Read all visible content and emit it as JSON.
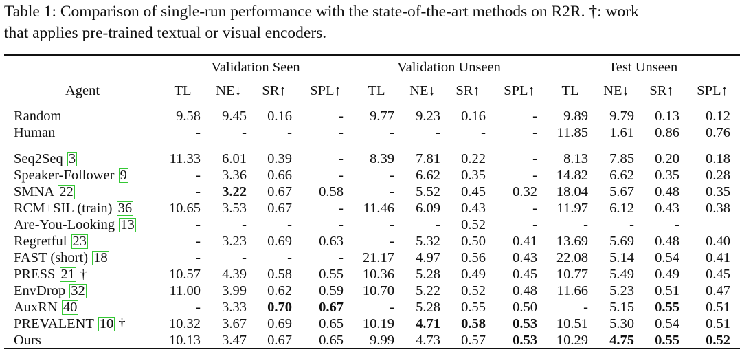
{
  "caption": {
    "line1": "Table 1: Comparison of single-run performance with the state-of-the-art methods on R2R. †: work",
    "line2": "that applies pre-trained textual or visual encoders."
  },
  "header": {
    "agent": "Agent",
    "groups": [
      "Validation Seen",
      "Validation Unseen",
      "Test Unseen"
    ],
    "metrics": [
      "TL",
      "NE↓",
      "SR↑",
      "SPL↑"
    ]
  },
  "rows": [
    {
      "name": "Random",
      "ref": "",
      "dagger": "",
      "values": [
        "9.58",
        "9.45",
        "0.16",
        "-",
        "9.77",
        "9.23",
        "0.16",
        "-",
        "9.89",
        "9.79",
        "0.13",
        "0.12"
      ],
      "bold": []
    },
    {
      "name": "Human",
      "ref": "",
      "dagger": "",
      "values": [
        "-",
        "-",
        "-",
        "-",
        "-",
        "-",
        "-",
        "-",
        "11.85",
        "1.61",
        "0.86",
        "0.76"
      ],
      "bold": []
    },
    {
      "name": "Seq2Seq",
      "ref": "3",
      "dagger": "",
      "values": [
        "11.33",
        "6.01",
        "0.39",
        "-",
        "8.39",
        "7.81",
        "0.22",
        "-",
        "8.13",
        "7.85",
        "0.20",
        "0.18"
      ],
      "bold": []
    },
    {
      "name": "Speaker-Follower",
      "ref": "9",
      "dagger": "",
      "values": [
        "-",
        "3.36",
        "0.66",
        "-",
        "-",
        "6.62",
        "0.35",
        "-",
        "14.82",
        "6.62",
        "0.35",
        "0.28"
      ],
      "bold": []
    },
    {
      "name": "SMNA",
      "ref": "22",
      "dagger": "",
      "values": [
        "-",
        "3.22",
        "0.67",
        "0.58",
        "-",
        "5.52",
        "0.45",
        "0.32",
        "18.04",
        "5.67",
        "0.48",
        "0.35"
      ],
      "bold": [
        1
      ]
    },
    {
      "name": "RCM+SIL (train)",
      "ref": "36",
      "dagger": "",
      "values": [
        "10.65",
        "3.53",
        "0.67",
        "-",
        "11.46",
        "6.09",
        "0.43",
        "-",
        "11.97",
        "6.12",
        "0.43",
        "0.38"
      ],
      "bold": []
    },
    {
      "name": "Are-You-Looking",
      "ref": "13",
      "dagger": "",
      "values": [
        "-",
        "-",
        "-",
        "-",
        "-",
        "-",
        "0.52",
        "-",
        "-",
        "-",
        "-",
        ""
      ],
      "bold": []
    },
    {
      "name": "Regretful",
      "ref": "23",
      "dagger": "",
      "values": [
        "-",
        "3.23",
        "0.69",
        "0.63",
        "-",
        "5.32",
        "0.50",
        "0.41",
        "13.69",
        "5.69",
        "0.48",
        "0.40"
      ],
      "bold": []
    },
    {
      "name": "FAST (short)",
      "ref": "18",
      "dagger": "",
      "values": [
        "-",
        "-",
        "-",
        "-",
        "21.17",
        "4.97",
        "0.56",
        "0.43",
        "22.08",
        "5.14",
        "0.54",
        "0.41"
      ],
      "bold": []
    },
    {
      "name": "PRESS",
      "ref": "21",
      "dagger": "†",
      "values": [
        "10.57",
        "4.39",
        "0.58",
        "0.55",
        "10.36",
        "5.28",
        "0.49",
        "0.45",
        "10.77",
        "5.49",
        "0.49",
        "0.45"
      ],
      "bold": []
    },
    {
      "name": "EnvDrop",
      "ref": "32",
      "dagger": "",
      "values": [
        "11.00",
        "3.99",
        "0.62",
        "0.59",
        "10.70",
        "5.22",
        "0.52",
        "0.48",
        "11.66",
        "5.23",
        "0.51",
        "0.47"
      ],
      "bold": []
    },
    {
      "name": "AuxRN",
      "ref": "40",
      "dagger": "",
      "values": [
        "-",
        "3.33",
        "0.70",
        "0.67",
        "-",
        "5.28",
        "0.55",
        "0.50",
        "-",
        "5.15",
        "0.55",
        "0.51"
      ],
      "bold": [
        2,
        3,
        10
      ]
    },
    {
      "name": "PREVALENT",
      "ref": "10",
      "dagger": "†",
      "values": [
        "10.32",
        "3.67",
        "0.69",
        "0.65",
        "10.19",
        "4.71",
        "0.58",
        "0.53",
        "10.51",
        "5.30",
        "0.54",
        "0.51"
      ],
      "bold": [
        5,
        6,
        7
      ]
    },
    {
      "name": "Ours",
      "ref": "",
      "dagger": "",
      "values": [
        "10.13",
        "3.47",
        "0.67",
        "0.65",
        "9.99",
        "4.73",
        "0.57",
        "0.53",
        "10.29",
        "4.75",
        "0.55",
        "0.52"
      ],
      "bold": [
        7,
        9,
        10,
        11
      ]
    }
  ]
}
